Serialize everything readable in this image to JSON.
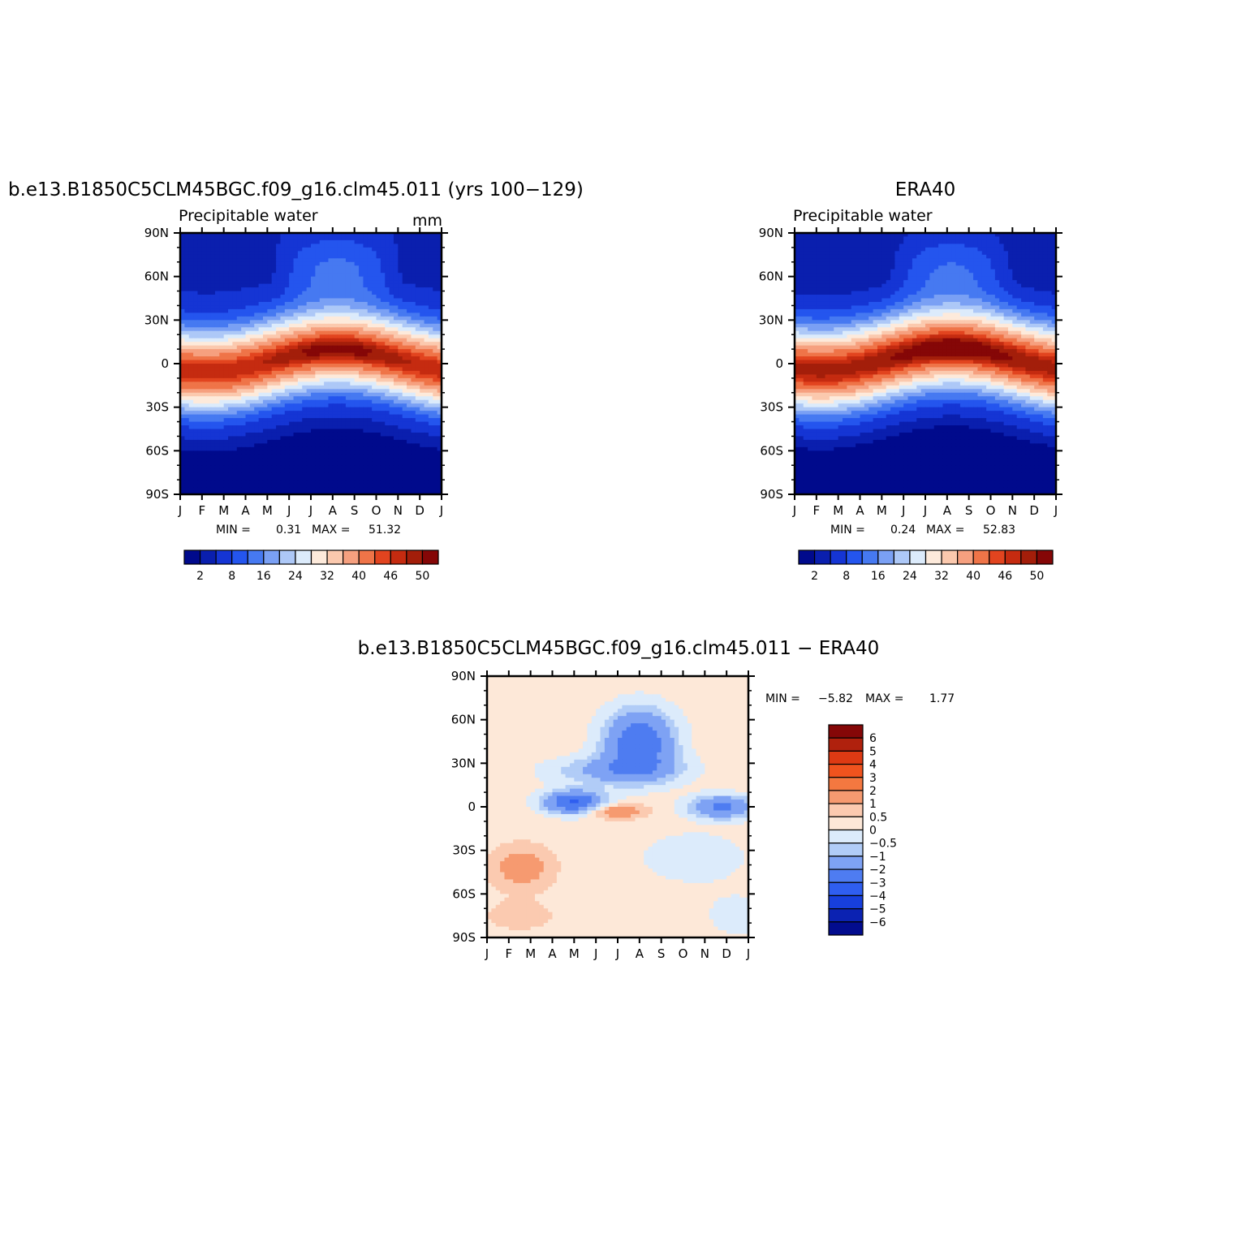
{
  "chart_data": [
    {
      "type": "heatmap",
      "title": "b.e13.B1850C5CLM45BGC.f09_g16.clm45.011 (yrs 100−129)",
      "subtitle": "Precipitable water",
      "units": "mm",
      "x_ticks": [
        "J",
        "F",
        "M",
        "A",
        "M",
        "J",
        "J",
        "A",
        "S",
        "O",
        "N",
        "D",
        "J"
      ],
      "y_ticks": [
        "90N",
        "60N",
        "30N",
        "0",
        "30S",
        "60S",
        "90S"
      ],
      "xlim": [
        0,
        12
      ],
      "ylim": [
        -90,
        90
      ],
      "min_label": "MIN =",
      "min_value": "0.31",
      "max_label": "MAX =",
      "max_value": "51.32",
      "colorbar_labels": [
        "2",
        "8",
        "16",
        "24",
        "32",
        "40",
        "46",
        "50"
      ],
      "field": {
        "pole_n": 3,
        "pole_s": 1,
        "peak": 51.3,
        "peak_lat": 2,
        "itcz_amp": 8,
        "season_amp": 6,
        "width": 28
      }
    },
    {
      "type": "heatmap",
      "title": "ERA40",
      "subtitle": "Precipitable water",
      "units": "",
      "x_ticks": [
        "J",
        "F",
        "M",
        "A",
        "M",
        "J",
        "J",
        "A",
        "S",
        "O",
        "N",
        "D",
        "J"
      ],
      "y_ticks": [
        "90N",
        "60N",
        "30N",
        "0",
        "30S",
        "60S",
        "90S"
      ],
      "xlim": [
        0,
        12
      ],
      "ylim": [
        -90,
        90
      ],
      "min_label": "MIN =",
      "min_value": "0.24",
      "max_label": "MAX =",
      "max_value": "52.83",
      "colorbar_labels": [
        "2",
        "8",
        "16",
        "24",
        "32",
        "40",
        "46",
        "50"
      ],
      "field": {
        "pole_n": 2,
        "pole_s": 0.5,
        "peak": 52.8,
        "peak_lat": 3,
        "itcz_amp": 8,
        "season_amp": 6,
        "width": 29
      }
    },
    {
      "type": "heatmap",
      "title": "b.e13.B1850C5CLM45BGC.f09_g16.clm45.011 − ERA40",
      "subtitle": "",
      "units": "",
      "x_ticks": [
        "J",
        "F",
        "M",
        "A",
        "M",
        "J",
        "J",
        "A",
        "S",
        "O",
        "N",
        "D",
        "J"
      ],
      "y_ticks": [
        "90N",
        "60N",
        "30N",
        "0",
        "30S",
        "60S",
        "90S"
      ],
      "xlim": [
        0,
        12
      ],
      "ylim": [
        -90,
        90
      ],
      "min_label": "MIN =",
      "min_value": "−5.82",
      "max_label": "MAX =",
      "max_value": "1.77",
      "colorbar_labels": [
        "6",
        "5",
        "4",
        "3",
        "2",
        "1",
        "0.5",
        "0",
        "−0.5",
        "−1",
        "−2",
        "−3",
        "−4",
        "−5",
        "−6"
      ]
    }
  ],
  "colors": {
    "abs_scale": [
      "#000a8c",
      "#0a1fae",
      "#1535d4",
      "#2455ee",
      "#4679f1",
      "#7aa0f4",
      "#adc8f7",
      "#dcebfb",
      "#fdeadb",
      "#fbc9ae",
      "#f6a07f",
      "#ef7448",
      "#e2441f",
      "#c52b10",
      "#a31e0a",
      "#850707"
    ],
    "diff_scale": [
      "#850707",
      "#b0210d",
      "#de3a13",
      "#f0531e",
      "#f47840",
      "#f69a70",
      "#fbcab0",
      "#fde8d8",
      "#dcebfb",
      "#b1ccf7",
      "#7ea2f4",
      "#4e7cf1",
      "#2f5ef0",
      "#173fdc",
      "#0b22b2",
      "#020c8e"
    ]
  }
}
